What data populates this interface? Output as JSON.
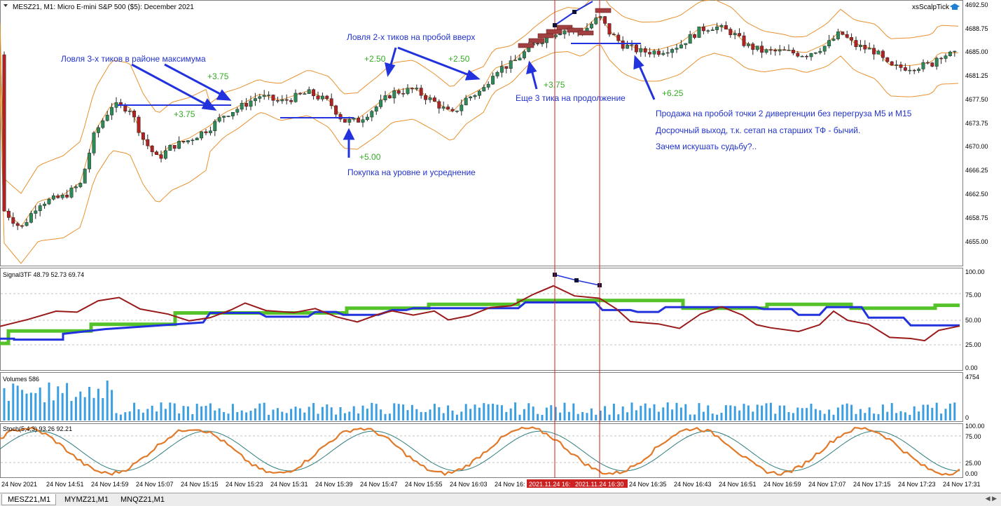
{
  "header": {
    "symbol_title": "MESZ21, M1:  Micro E-mini S&P 500 ($5): December 2021",
    "expert_name": "xsScalpTick"
  },
  "price_axis": [
    "4692.50",
    "4688.75",
    "4685.00",
    "4681.25",
    "4677.50",
    "4673.75",
    "4670.00",
    "4666.25",
    "4662.50",
    "4658.75",
    "4655.00"
  ],
  "annotations": {
    "catch_max": "Ловля 3-х тиков в районе максимума",
    "catch_up": "Ловля 2-х тиков на пробой вверх",
    "buy_level": "Покупка на уровне и усреднение",
    "more_ticks": "Еще 3 тика на продолжение",
    "sell_1": "Продажа на пробой точки 2 дивергенции без перегруза M5 и M15",
    "sell_2": "Досрочный выход, т.к. сетап на старших ТФ - бычий.",
    "sell_3": "Зачем искушать судьбу?..",
    "p375a": "+3.75",
    "p375b": "+3.75",
    "p250a": "+2.50",
    "p250b": "+2.50",
    "p500": "+5.00",
    "p375c": "+3.75",
    "p625": "+6.25"
  },
  "signal_panel": {
    "label": "Signal3TF 48.79 52.73 69.74",
    "axis": [
      "100.00",
      "75.00",
      "50.00",
      "25.00",
      "0.00"
    ]
  },
  "volume_panel": {
    "label": "Volumes 586",
    "axis_max": "4754",
    "axis_min": "0"
  },
  "stoch_panel": {
    "label": "Stoch(5,4,3) 93.26 92.21",
    "axis": [
      "100.00",
      "75.00",
      "25.00",
      "0.00"
    ]
  },
  "time_axis": [
    "24 Nov 2021",
    "24 Nov 14:51",
    "24 Nov 14:59",
    "24 Nov 15:07",
    "24 Nov 15:15",
    "24 Nov 15:23",
    "24 Nov 15:31",
    "24 Nov 15:39",
    "24 Nov 15:47",
    "24 Nov 15:55",
    "24 Nov 16:03",
    "24 Nov 16:",
    "24 Nov 16:35",
    "24 Nov 16:43",
    "24 Nov 16:51",
    "24 Nov 16:59",
    "24 Nov 17:07",
    "24 Nov 17:15",
    "24 Nov 17:23",
    "24 Nov 17:31"
  ],
  "crosshair_times": [
    "2021.11.24 16:",
    "2021.11.24 16:30"
  ],
  "tabs": [
    "MESZ21,M1",
    "MYMZ21,M1",
    "MNQZ21,M1"
  ],
  "colors": {
    "bull": "#2e8b57",
    "bear": "#b22222",
    "bands": "#e8912e",
    "annotation": "#2233cc",
    "profit": "#33aa22",
    "signal_green": "#55c22a",
    "signal_blue": "#2233dd",
    "signal_red": "#991a1a",
    "volume": "#3a9fe0",
    "stoch_main": "#e07a2a",
    "stoch_signal": "#2e7d7d",
    "crosshair": "#cc2222"
  }
}
